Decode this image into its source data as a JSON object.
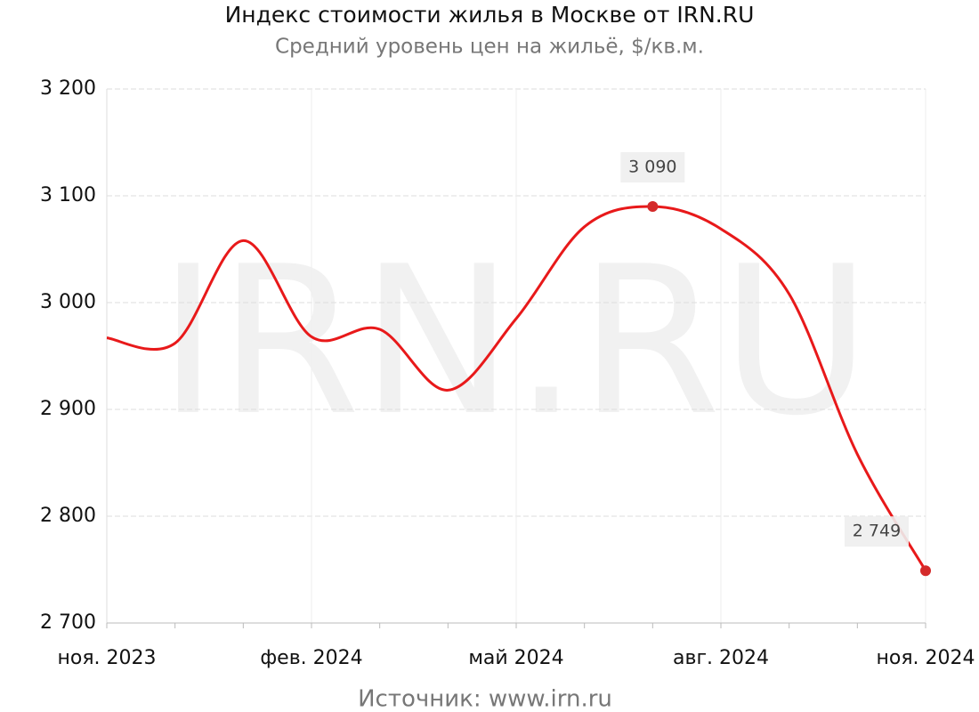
{
  "chart_data": {
    "type": "line",
    "title": "Индекс стоимости жилья в Москве от IRN.RU",
    "subtitle": "Средний уровень цен на жильё, $/кв.м.",
    "watermark": "IRN.RU",
    "source": "Источник:  www.irn.ru",
    "categories": [
      "ноя. 2023",
      null,
      null,
      "фев. 2024",
      null,
      null,
      "май 2024",
      null,
      null,
      "авг. 2024",
      null,
      null,
      "ноя. 2024"
    ],
    "series": [
      {
        "color": "#e8191a",
        "values": [
          2967,
          2962,
          3058,
          2968,
          2975,
          2918,
          2985,
          3071,
          3090,
          3069,
          3008,
          2858,
          2749
        ],
        "value_labels": [
          null,
          null,
          null,
          null,
          null,
          null,
          null,
          null,
          "3 090",
          null,
          null,
          null,
          "2 749"
        ]
      }
    ],
    "ylim": [
      2700,
      3200
    ],
    "yticks": [
      {
        "value": 2700,
        "label": "2 700"
      },
      {
        "value": 2800,
        "label": "2 800"
      },
      {
        "value": 2900,
        "label": "2 900"
      },
      {
        "value": 3000,
        "label": "3 000"
      },
      {
        "value": 3100,
        "label": "3 100"
      },
      {
        "value": 3200,
        "label": "3 200"
      }
    ],
    "grid": true
  }
}
